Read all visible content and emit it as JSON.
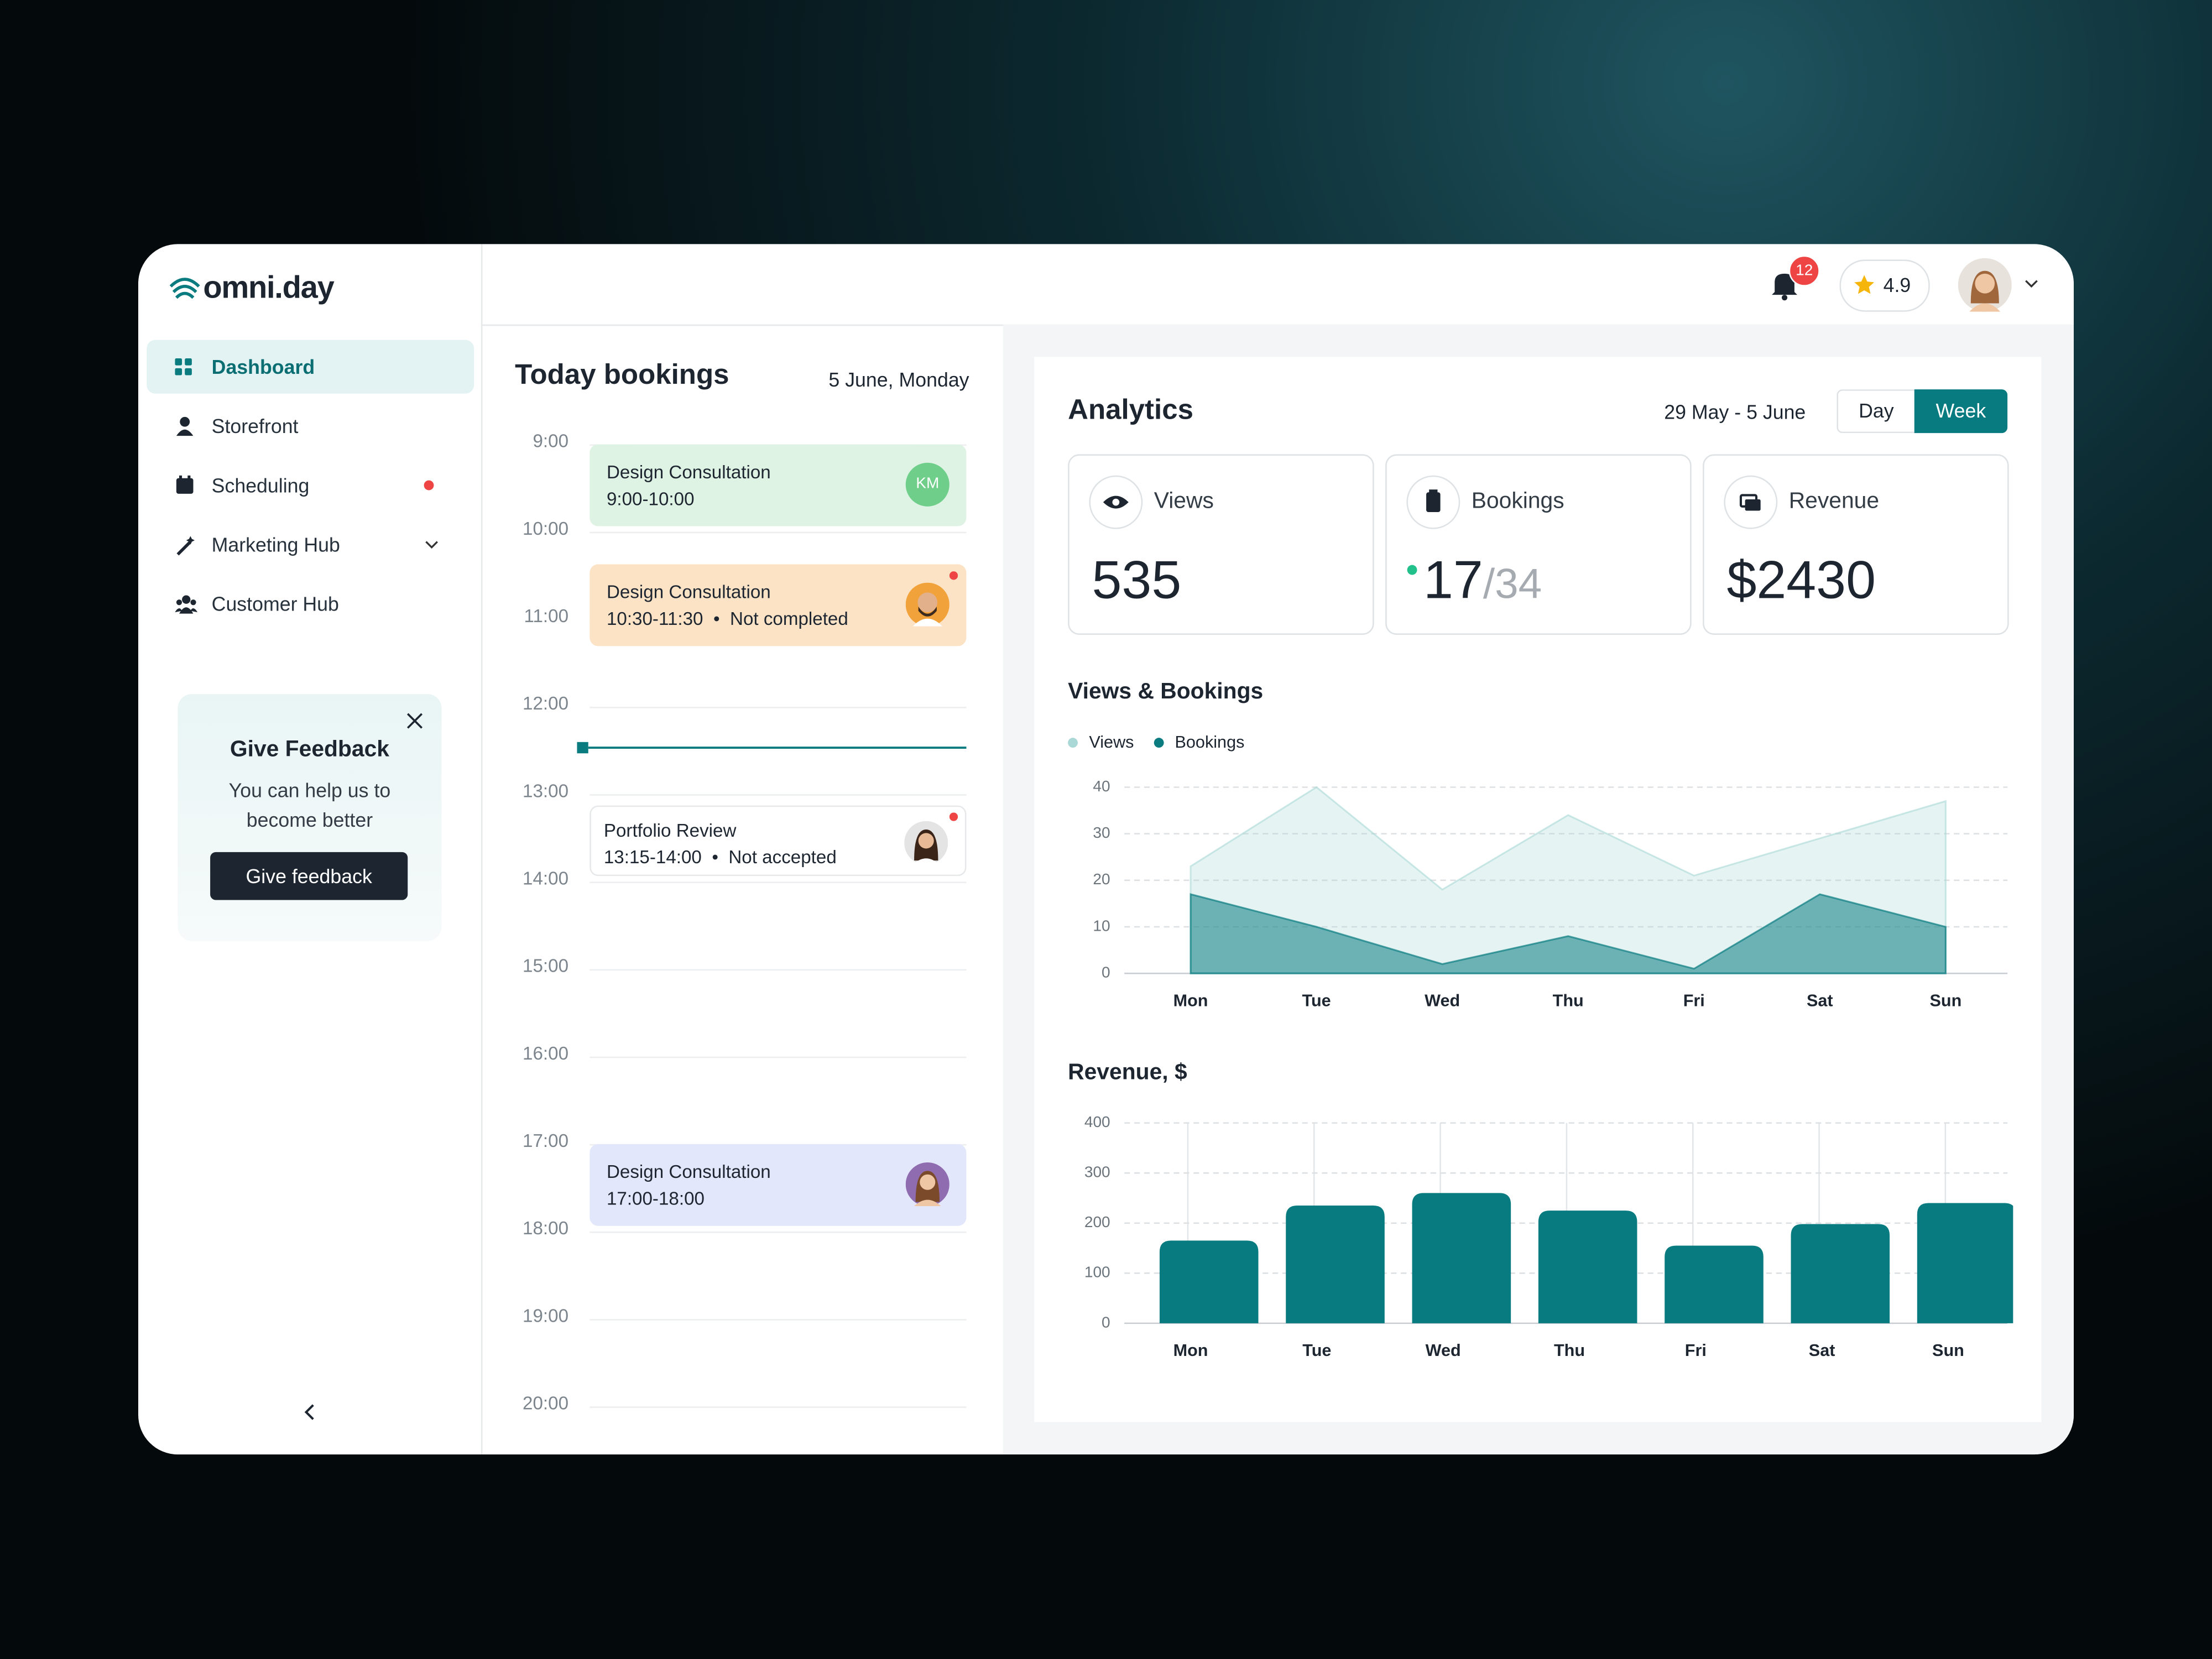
{
  "sidebar": {
    "logo": "omni.day",
    "nav": [
      "Dashboard",
      "Storefront",
      "Scheduling",
      "Marketing Hub",
      "Customer Hub"
    ],
    "feedback": {
      "title": "Give Feedback",
      "text": "You can help us to become better",
      "button": "Give feedback"
    }
  },
  "header": {
    "notifications": 12,
    "rating": 4.9
  },
  "bookings": {
    "title": "Today bookings",
    "date": "5 June, Monday",
    "hours": [
      "9:00",
      "10:00",
      "11:00",
      "12:00",
      "13:00",
      "14:00",
      "15:00",
      "16:00",
      "17:00",
      "18:00",
      "19:00",
      "20:00"
    ],
    "events": [
      {
        "title": "Design Consultation",
        "time": "9:00-10:00",
        "avatar": "KM"
      },
      {
        "title": "Design Consultation",
        "time": "10:30-11:30",
        "status": "Not completed"
      },
      {
        "title": "Portfolio Review",
        "time": "13:15-14:00",
        "status": "Not accepted"
      },
      {
        "title": "Design Consultation",
        "time": "17:00-18:00"
      }
    ]
  },
  "analytics": {
    "title": "Analytics",
    "range": "29 May - 5 June",
    "toggle": [
      "Day",
      "Week"
    ],
    "stats": [
      {
        "label": "Views",
        "value": 535
      },
      {
        "label": "Bookings",
        "value": 17,
        "total": "/34"
      },
      {
        "label": "Revenue",
        "value": "$2430"
      }
    ],
    "views_bookings": {
      "type": "area",
      "title": "Views & Bookings",
      "categories": [
        "Mon",
        "Tue",
        "Wed",
        "Thu",
        "Fri",
        "Sat",
        "Sun"
      ],
      "series": [
        {
          "name": "Views",
          "color": "#a9d8d6",
          "values": [
            23,
            40,
            18,
            34,
            21,
            29,
            37
          ]
        },
        {
          "name": "Bookings",
          "color": "#0a7c80",
          "values": [
            17,
            10,
            2,
            8,
            1,
            17,
            10
          ]
        }
      ],
      "ylim": [
        0,
        40
      ],
      "yticks": [
        0,
        10,
        20,
        30,
        40
      ],
      "grid": true
    },
    "revenue": {
      "type": "bar",
      "title": "Revenue, $",
      "categories": [
        "Mon",
        "Tue",
        "Wed",
        "Thu",
        "Fri",
        "Sat",
        "Sun"
      ],
      "values": [
        165,
        235,
        260,
        225,
        155,
        198,
        240
      ],
      "color": "#077b7f",
      "ylim": [
        0,
        400
      ],
      "yticks": [
        0,
        100,
        200,
        300,
        400
      ],
      "grid": true
    }
  }
}
